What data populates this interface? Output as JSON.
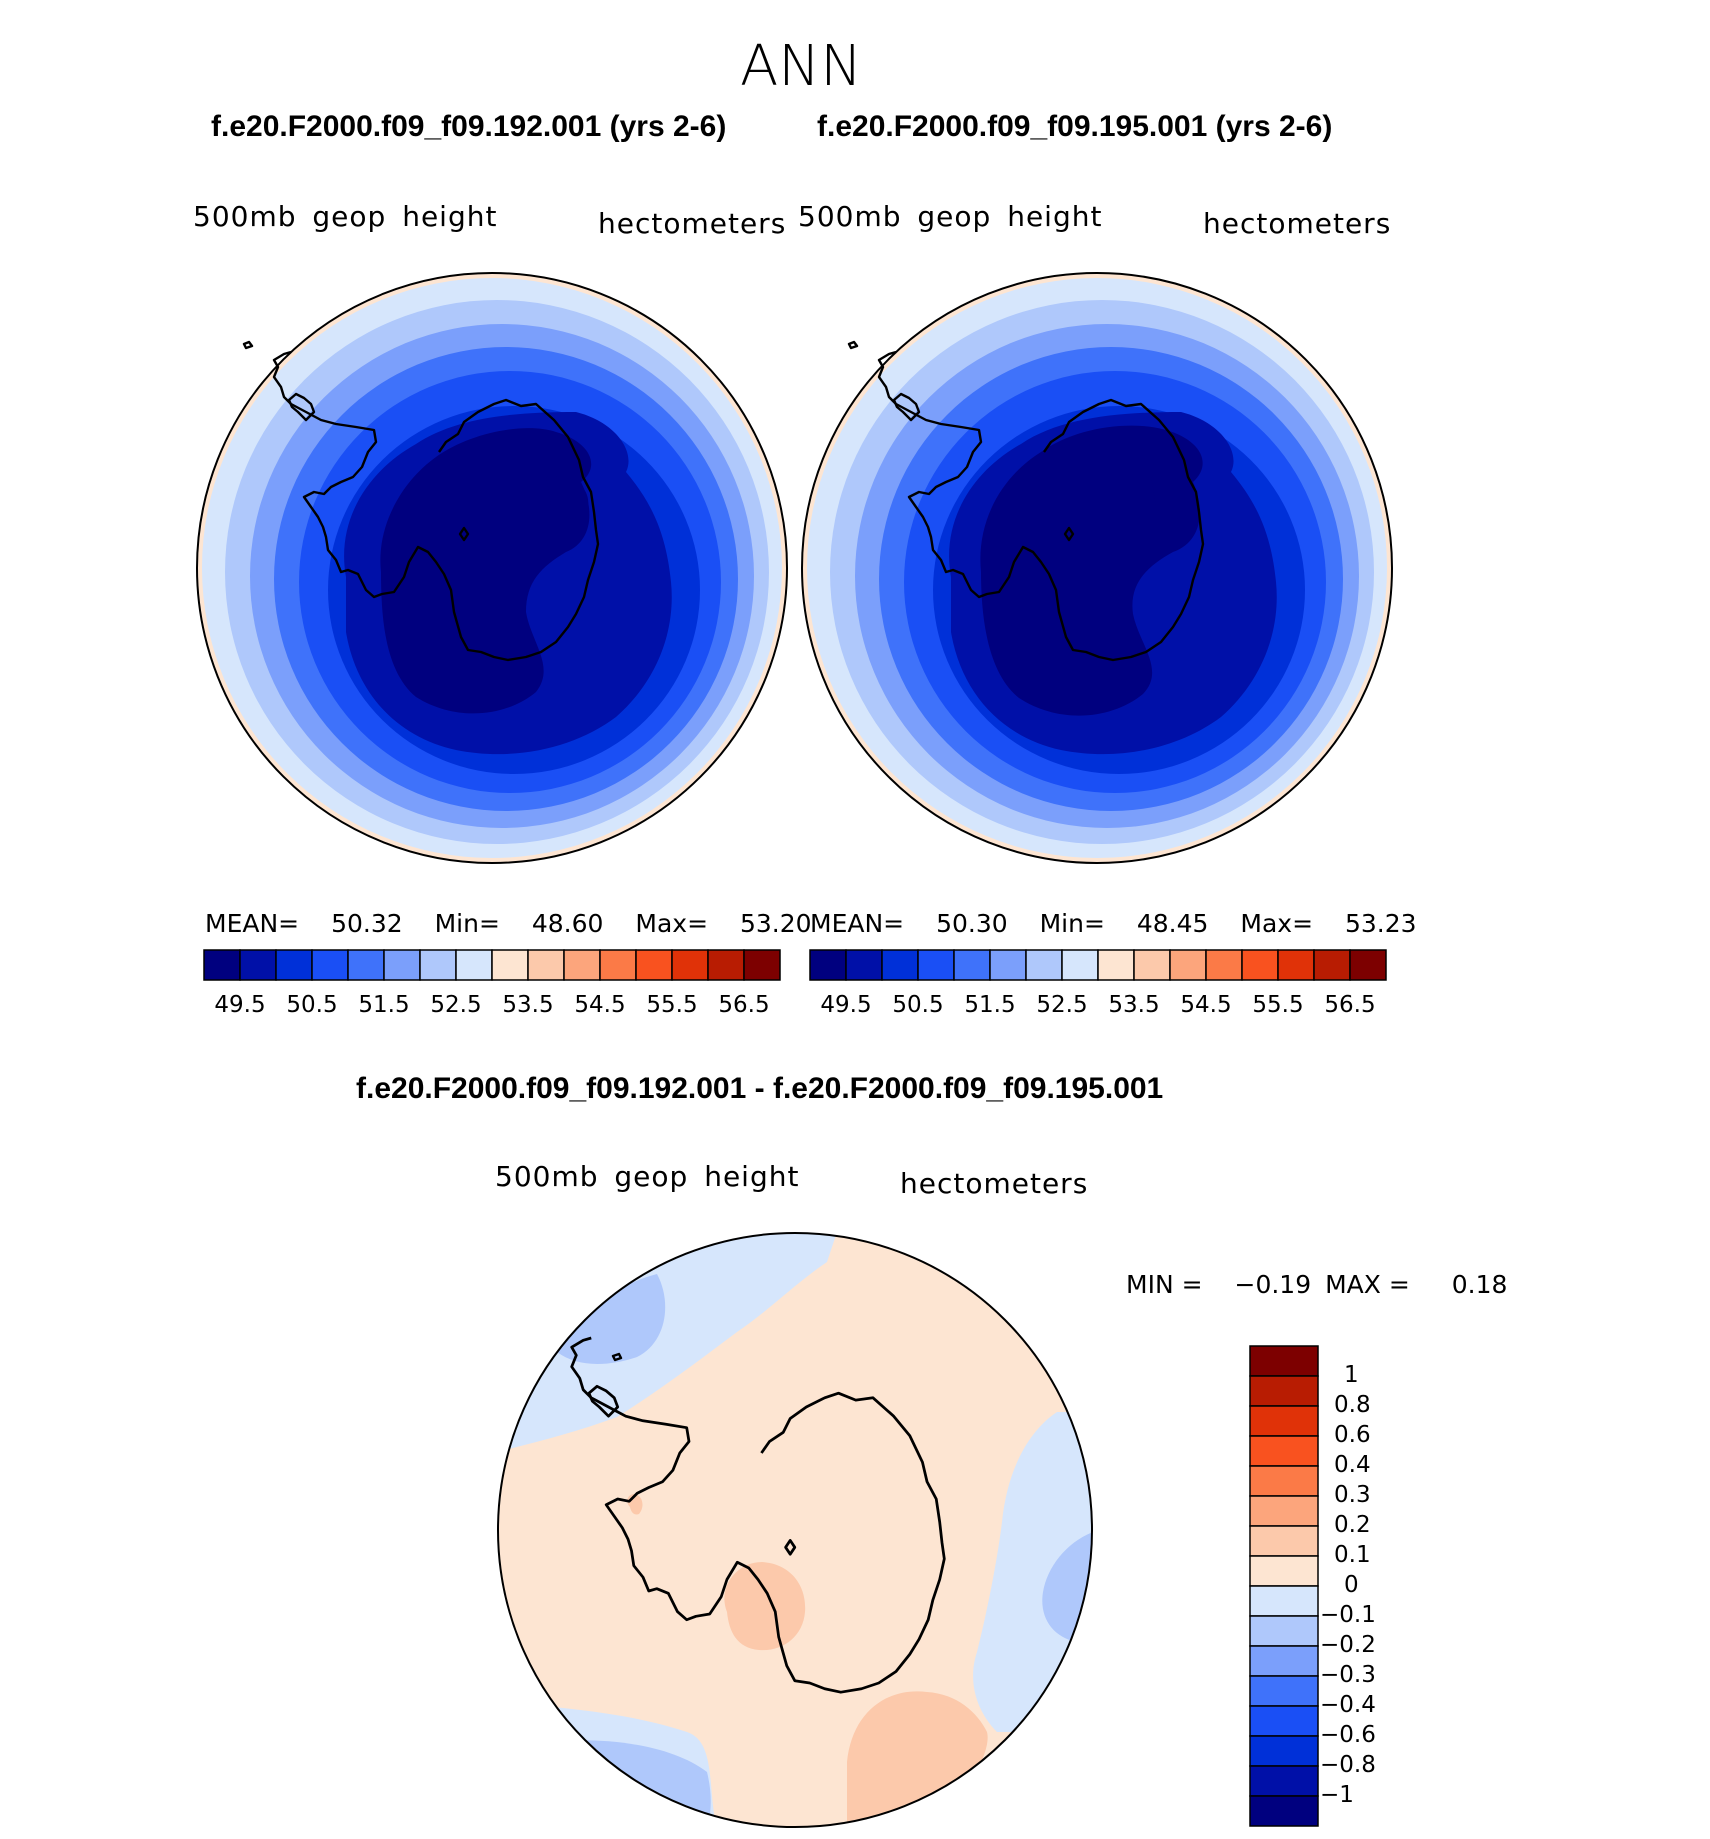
{
  "season": "ANN",
  "case1_title": "f.e20.F2000.f09_f09.192.001 (yrs 2-6)",
  "case2_title": "f.e20.F2000.f09_f09.195.001 (yrs 2-6)",
  "diff_title": "f.e20.F2000.f09_f09.192.001 - f.e20.F2000.f09_f09.195.001",
  "panels": [
    {
      "variable": "500mb geop height",
      "units": "hectometers",
      "mean_label": "MEAN=",
      "mean": "50.32",
      "min_label": "Min=",
      "min": "48.60",
      "max_label": "Max=",
      "max": "53.20"
    },
    {
      "variable": "500mb geop height",
      "units": "hectometers",
      "mean_label": "MEAN=",
      "mean": "50.30",
      "min_label": "Min=",
      "min": "48.45",
      "max_label": "Max=",
      "max": "53.23"
    },
    {
      "variable": "500mb geop height",
      "units": "hectometers",
      "min_label": "MIN =",
      "min": "−0.19",
      "max_label": "MAX =",
      "max": "0.18"
    }
  ],
  "abs_colorbar": {
    "colors": [
      "#00007f",
      "#0010a8",
      "#0030d8",
      "#1a4ff5",
      "#3f72fa",
      "#7b9ffb",
      "#afc8fb",
      "#d6e6fc",
      "#fde5d2",
      "#fcc9ab",
      "#fca57c",
      "#fb7a47",
      "#f9521f",
      "#e03208",
      "#b81c02",
      "#7d0000"
    ],
    "ticks": [
      "49.5",
      "50.5",
      "51.5",
      "52.5",
      "53.5",
      "54.5",
      "55.5",
      "56.5"
    ]
  },
  "diff_colorbar": {
    "colors": [
      "#7d0000",
      "#b81c02",
      "#e03208",
      "#f9521f",
      "#fb7a47",
      "#fca57c",
      "#fcc9ab",
      "#fde5d2",
      "#d6e6fc",
      "#afc8fb",
      "#7b9ffb",
      "#3f72fa",
      "#1a4ff5",
      "#0030d8",
      "#0010a8",
      "#00007f"
    ],
    "ticks": [
      "1",
      "0.8",
      "0.6",
      "0.4",
      "0.3",
      "0.2",
      "0.1",
      "0",
      "−0.1",
      "−0.2",
      "−0.3",
      "−0.4",
      "−0.6",
      "−0.8",
      "−1"
    ]
  },
  "chart_data": [
    {
      "type": "heatmap",
      "projection": "south-polar-stereographic",
      "title": "f.e20.F2000.f09_f09.192.001 (yrs 2-6)",
      "field": "500mb geop height",
      "units": "hectometers",
      "mean": 50.32,
      "min": 48.6,
      "max": 53.2,
      "levels": [
        49,
        49.5,
        50,
        50.5,
        51,
        51.5,
        52,
        52.5,
        53,
        53.5,
        54,
        54.5,
        55,
        55.5,
        56,
        56.5
      ]
    },
    {
      "type": "heatmap",
      "projection": "south-polar-stereographic",
      "title": "f.e20.F2000.f09_f09.195.001 (yrs 2-6)",
      "field": "500mb geop height",
      "units": "hectometers",
      "mean": 50.3,
      "min": 48.45,
      "max": 53.23,
      "levels": [
        49,
        49.5,
        50,
        50.5,
        51,
        51.5,
        52,
        52.5,
        53,
        53.5,
        54,
        54.5,
        55,
        55.5,
        56,
        56.5
      ]
    },
    {
      "type": "heatmap",
      "projection": "south-polar-stereographic",
      "title": "f.e20.F2000.f09_f09.192.001 - f.e20.F2000.f09_f09.195.001",
      "field": "500mb geop height",
      "units": "hectometers",
      "min": -0.19,
      "max": 0.18,
      "levels": [
        -1,
        -0.8,
        -0.6,
        -0.4,
        -0.3,
        -0.2,
        -0.1,
        0,
        0.1,
        0.2,
        0.3,
        0.4,
        0.6,
        0.8,
        1
      ]
    }
  ]
}
